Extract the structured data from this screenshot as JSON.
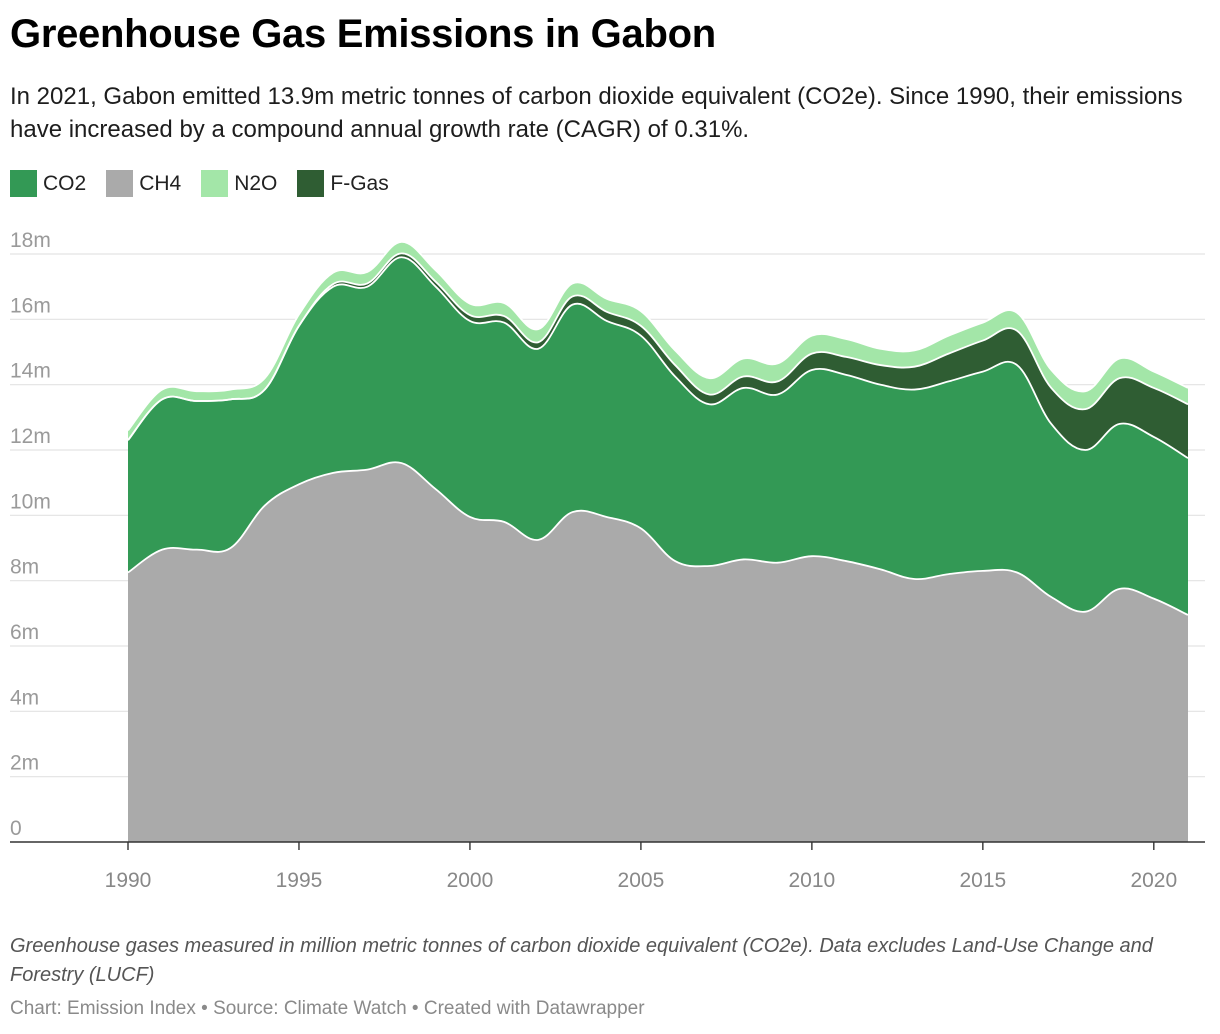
{
  "title": "Greenhouse Gas Emissions in Gabon",
  "subtitle": "In 2021, Gabon emitted 13.9m metric tonnes of carbon dioxide equivalent (CO2e). Since 1990, their emissions have increased by a compound annual growth rate (CAGR) of 0.31%.",
  "note": "Greenhouse gases measured in million metric tonnes of carbon dioxide equivalent (CO2e). Data excludes Land-Use Change and Forestry (LUCF)",
  "credit": "Chart: Emission Index • Source: Climate Watch • Created with Datawrapper",
  "legend": [
    {
      "label": "CO2",
      "color": "#339955"
    },
    {
      "label": "CH4",
      "color": "#aaaaaa"
    },
    {
      "label": "N2O",
      "color": "#a3e6a8"
    },
    {
      "label": "F-Gas",
      "color": "#2f5d33"
    }
  ],
  "chart_data": {
    "type": "area",
    "stacked": true,
    "title": "Greenhouse Gas Emissions in Gabon",
    "xlabel": "",
    "ylabel": "",
    "x": [
      1990,
      1991,
      1992,
      1993,
      1994,
      1995,
      1996,
      1997,
      1998,
      1999,
      2000,
      2001,
      2002,
      2003,
      2004,
      2005,
      2006,
      2007,
      2008,
      2009,
      2010,
      2011,
      2012,
      2013,
      2014,
      2015,
      2016,
      2017,
      2018,
      2019,
      2020,
      2021
    ],
    "ylim": [
      0,
      18
    ],
    "yticks": [
      0,
      2,
      4,
      6,
      8,
      10,
      12,
      14,
      16,
      18
    ],
    "ytick_labels": [
      "0",
      "2m",
      "4m",
      "6m",
      "8m",
      "10m",
      "12m",
      "14m",
      "16m",
      "18m"
    ],
    "xticks": [
      1990,
      1995,
      2000,
      2005,
      2010,
      2015,
      2020
    ],
    "grid": true,
    "legend_position": "top-left",
    "series": [
      {
        "name": "CH4",
        "color": "#aaaaaa",
        "values": [
          8.25,
          8.95,
          8.95,
          9.0,
          10.3,
          10.95,
          11.3,
          11.4,
          11.6,
          10.8,
          9.95,
          9.8,
          9.25,
          10.1,
          9.95,
          9.6,
          8.6,
          8.45,
          8.65,
          8.55,
          8.75,
          8.6,
          8.35,
          8.05,
          8.2,
          8.3,
          8.25,
          7.5,
          7.05,
          7.75,
          7.45,
          6.95
        ]
      },
      {
        "name": "CO2",
        "color": "#339955",
        "values": [
          4.05,
          4.6,
          4.55,
          4.55,
          3.55,
          4.85,
          5.7,
          5.6,
          6.3,
          6.2,
          6.0,
          6.1,
          5.85,
          6.35,
          6.0,
          5.9,
          5.65,
          4.95,
          5.25,
          5.15,
          5.7,
          5.7,
          5.65,
          5.8,
          5.9,
          6.1,
          6.35,
          5.3,
          4.95,
          5.05,
          4.95,
          4.8
        ]
      },
      {
        "name": "F-Gas",
        "color": "#2f5d33",
        "values": [
          0.0,
          0.0,
          0.0,
          0.0,
          0.0,
          0.0,
          0.08,
          0.1,
          0.12,
          0.15,
          0.18,
          0.2,
          0.2,
          0.25,
          0.28,
          0.3,
          0.35,
          0.3,
          0.35,
          0.4,
          0.5,
          0.55,
          0.6,
          0.7,
          0.85,
          0.95,
          1.05,
          1.1,
          1.25,
          1.4,
          1.5,
          1.65
        ]
      },
      {
        "name": "N2O",
        "color": "#a3e6a8",
        "values": [
          0.3,
          0.3,
          0.3,
          0.3,
          0.35,
          0.35,
          0.35,
          0.35,
          0.35,
          0.35,
          0.35,
          0.4,
          0.4,
          0.4,
          0.4,
          0.45,
          0.45,
          0.5,
          0.55,
          0.55,
          0.55,
          0.55,
          0.5,
          0.5,
          0.55,
          0.55,
          0.55,
          0.55,
          0.55,
          0.6,
          0.5,
          0.5
        ]
      }
    ]
  }
}
